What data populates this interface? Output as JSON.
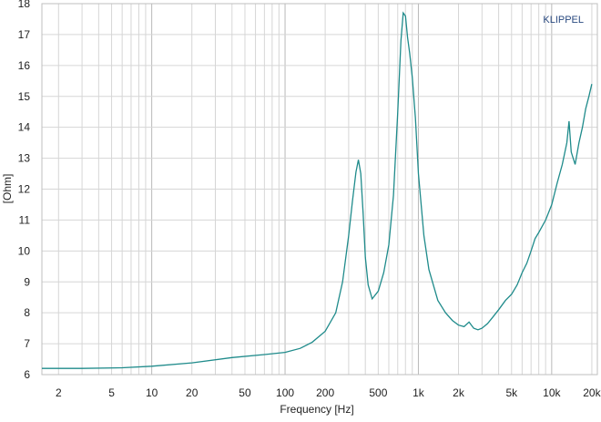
{
  "chart_data": {
    "type": "line",
    "brand": "KLIPPEL",
    "xlabel": "Frequency [Hz]",
    "ylabel": "[Ohm]",
    "xscale": "log",
    "xlim": [
      1.5,
      22000
    ],
    "ylim": [
      6,
      18
    ],
    "grid": true,
    "xticks": [
      {
        "value": 2,
        "label": "2"
      },
      {
        "value": 5,
        "label": "5"
      },
      {
        "value": 10,
        "label": "10"
      },
      {
        "value": 20,
        "label": "20"
      },
      {
        "value": 50,
        "label": "50"
      },
      {
        "value": 100,
        "label": "100"
      },
      {
        "value": 200,
        "label": "200"
      },
      {
        "value": 500,
        "label": "500"
      },
      {
        "value": 1000,
        "label": "1k"
      },
      {
        "value": 2000,
        "label": "2k"
      },
      {
        "value": 5000,
        "label": "5k"
      },
      {
        "value": 10000,
        "label": "10k"
      },
      {
        "value": 20000,
        "label": "20k"
      }
    ],
    "yticks": [
      6,
      7,
      8,
      9,
      10,
      11,
      12,
      13,
      14,
      15,
      16,
      17,
      18
    ],
    "colors": {
      "line": "#1f8b8b",
      "grid": "#d6d6d6",
      "frame": "#bfbfbf",
      "brand": "#2a4a80"
    },
    "series": [
      {
        "x": [
          1.5,
          3,
          6,
          10,
          20,
          40,
          70,
          100,
          130,
          160,
          200,
          240,
          270,
          300,
          320,
          340,
          355,
          370,
          385,
          400,
          420,
          450,
          500,
          550,
          600,
          650,
          700,
          740,
          770,
          800,
          830,
          860,
          900,
          950,
          1000,
          1100,
          1200,
          1400,
          1600,
          1800,
          2000,
          2200,
          2400,
          2600,
          2800,
          3000,
          3300,
          3600,
          4000,
          4500,
          5000,
          5500,
          6000,
          6500,
          7000,
          7500,
          8000,
          9000,
          10000,
          11000,
          12000,
          13000,
          13500,
          14000,
          15000,
          16000,
          17000,
          18000,
          19000,
          20000
        ],
        "y": [
          6.2,
          6.2,
          6.22,
          6.27,
          6.38,
          6.55,
          6.65,
          6.72,
          6.85,
          7.05,
          7.4,
          8.0,
          9.0,
          10.5,
          11.6,
          12.55,
          12.95,
          12.5,
          11.2,
          9.8,
          8.9,
          8.45,
          8.7,
          9.3,
          10.2,
          11.8,
          14.5,
          16.8,
          17.7,
          17.6,
          16.9,
          16.4,
          15.6,
          14.3,
          12.5,
          10.5,
          9.4,
          8.4,
          8.0,
          7.75,
          7.6,
          7.55,
          7.7,
          7.5,
          7.45,
          7.5,
          7.65,
          7.85,
          8.1,
          8.4,
          8.6,
          8.9,
          9.3,
          9.6,
          10.0,
          10.4,
          10.6,
          11.0,
          11.5,
          12.2,
          12.8,
          13.5,
          14.2,
          13.2,
          12.8,
          13.5,
          14.0,
          14.6,
          15.0,
          15.4
        ]
      }
    ]
  }
}
